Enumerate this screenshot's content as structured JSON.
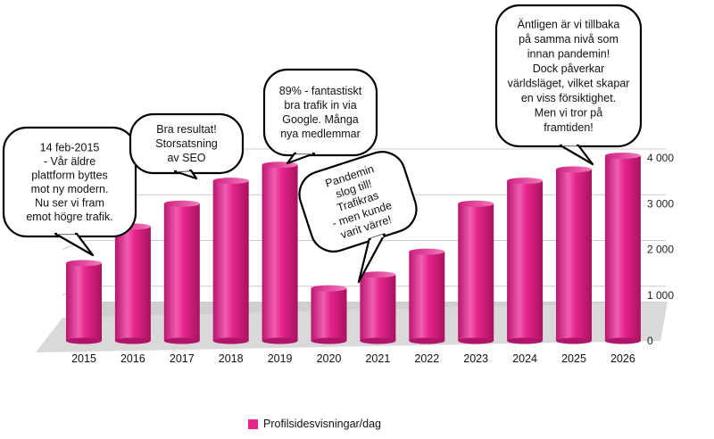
{
  "chart_data": {
    "type": "bar",
    "categories": [
      "2015",
      "2016",
      "2017",
      "2018",
      "2019",
      "2020",
      "2021",
      "2022",
      "2023",
      "2024",
      "2025",
      "2026"
    ],
    "series": [
      {
        "name": "Profilsidesvisningar/dag",
        "values": [
          1700,
          2500,
          3000,
          3500,
          3850,
          1150,
          1450,
          1950,
          3000,
          3500,
          3750,
          4050
        ]
      }
    ],
    "yticks": [
      "0",
      "1 000",
      "2 000",
      "3 000",
      "4 000"
    ],
    "ylim": [
      0,
      4000
    ],
    "y_axis_side": "right",
    "grid": true,
    "legend_position": "bottom",
    "title": "",
    "xlabel": "",
    "ylabel": "",
    "colors": {
      "bar": "#e6248c",
      "bar_highlight": "#f27bbd",
      "bar_shadow": "#b0156a",
      "floor": "#cfcfcf",
      "grid": "#cccccc"
    },
    "annotations": [
      {
        "category": "2015",
        "lines": [
          "14 feb-2015",
          "- Vår äldre",
          "plattform byttes",
          "mot ny modern.",
          "Nu ser vi fram",
          "emot högre trafik."
        ]
      },
      {
        "category": "2017",
        "lines": [
          "Bra resultat!",
          "Storsatsning",
          "av SEO"
        ]
      },
      {
        "category": "2019",
        "lines": [
          "89% - fantastiskt",
          "bra trafik in via",
          "Google. Många",
          "nya medlemmar"
        ]
      },
      {
        "category": "2021",
        "lines": [
          "Pandemin",
          "slog till!",
          "Trafikras",
          "- men kunde",
          "varit värre!"
        ]
      },
      {
        "category": "2025",
        "lines": [
          "Äntligen är vi tillbaka",
          "på samma nivå som",
          "innan pandemin!",
          "Dock påverkar",
          "världsläget, vilket skapar",
          "en viss försiktighet.",
          "Men vi tror på",
          "framtiden!"
        ]
      }
    ]
  }
}
